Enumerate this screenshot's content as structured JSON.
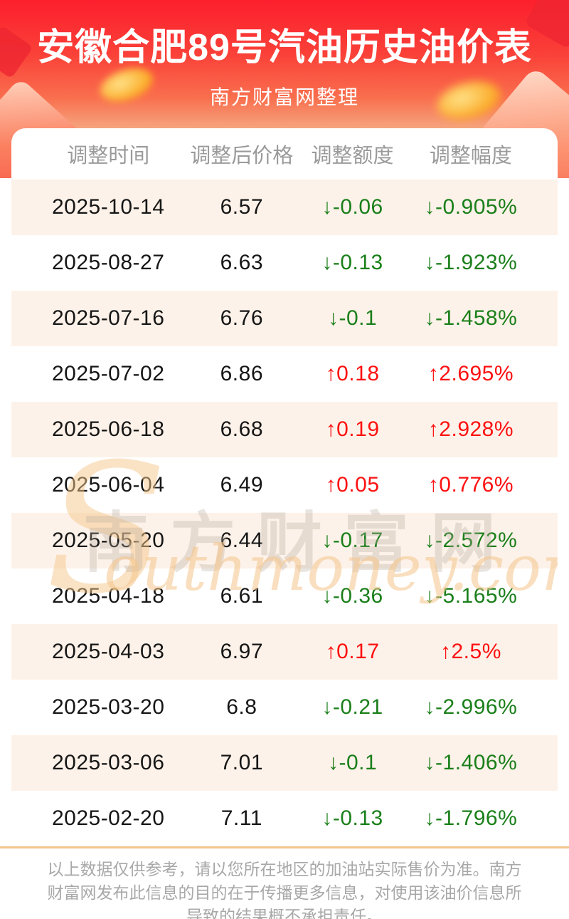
{
  "header": {
    "title": "安徽合肥89号汽油历史油价表",
    "subtitle": "南方财富网整理",
    "bg_top_color": "#fc1f2d",
    "bg_bottom_color": "#f5a47e"
  },
  "table": {
    "columns": [
      "调整时间",
      "调整后价格",
      "调整额度",
      "调整幅度"
    ],
    "arrow_up": "↑",
    "arrow_down": "↓",
    "colors": {
      "up": "#fd1111",
      "down": "#1a7f1a",
      "stripe": "#fdf2e9",
      "header_text": "#9a9a9a",
      "body_text": "#161616"
    },
    "rows": [
      {
        "date": "2025-10-14",
        "price": "6.57",
        "change": "-0.06",
        "percent": "-0.905%",
        "direction": "down"
      },
      {
        "date": "2025-08-27",
        "price": "6.63",
        "change": "-0.13",
        "percent": "-1.923%",
        "direction": "down"
      },
      {
        "date": "2025-07-16",
        "price": "6.76",
        "change": "-0.1",
        "percent": "-1.458%",
        "direction": "down"
      },
      {
        "date": "2025-07-02",
        "price": "6.86",
        "change": "0.18",
        "percent": "2.695%",
        "direction": "up"
      },
      {
        "date": "2025-06-18",
        "price": "6.68",
        "change": "0.19",
        "percent": "2.928%",
        "direction": "up"
      },
      {
        "date": "2025-06-04",
        "price": "6.49",
        "change": "0.05",
        "percent": "0.776%",
        "direction": "up"
      },
      {
        "date": "2025-05-20",
        "price": "6.44",
        "change": "-0.17",
        "percent": "-2.572%",
        "direction": "down"
      },
      {
        "date": "2025-04-18",
        "price": "6.61",
        "change": "-0.36",
        "percent": "-5.165%",
        "direction": "down"
      },
      {
        "date": "2025-04-03",
        "price": "6.97",
        "change": "0.17",
        "percent": "2.5%",
        "direction": "up"
      },
      {
        "date": "2025-03-20",
        "price": "6.8",
        "change": "-0.21",
        "percent": "-2.996%",
        "direction": "down"
      },
      {
        "date": "2025-03-06",
        "price": "7.01",
        "change": "-0.1",
        "percent": "-1.406%",
        "direction": "down"
      },
      {
        "date": "2025-02-20",
        "price": "7.11",
        "change": "-0.13",
        "percent": "-1.796%",
        "direction": "down"
      }
    ]
  },
  "watermark": {
    "cn": "南方财富网",
    "en": "outhmoney.com",
    "initial": "S"
  },
  "footer": {
    "divider_color": "#f4c48c",
    "disclaimer": "以上数据仅供参考，请以您所在地区的加油站实际售价为准。南方财富网发布此信息的目的在于传播更多信息，对使用该油价信息所导致的结果概不承担责任。"
  }
}
